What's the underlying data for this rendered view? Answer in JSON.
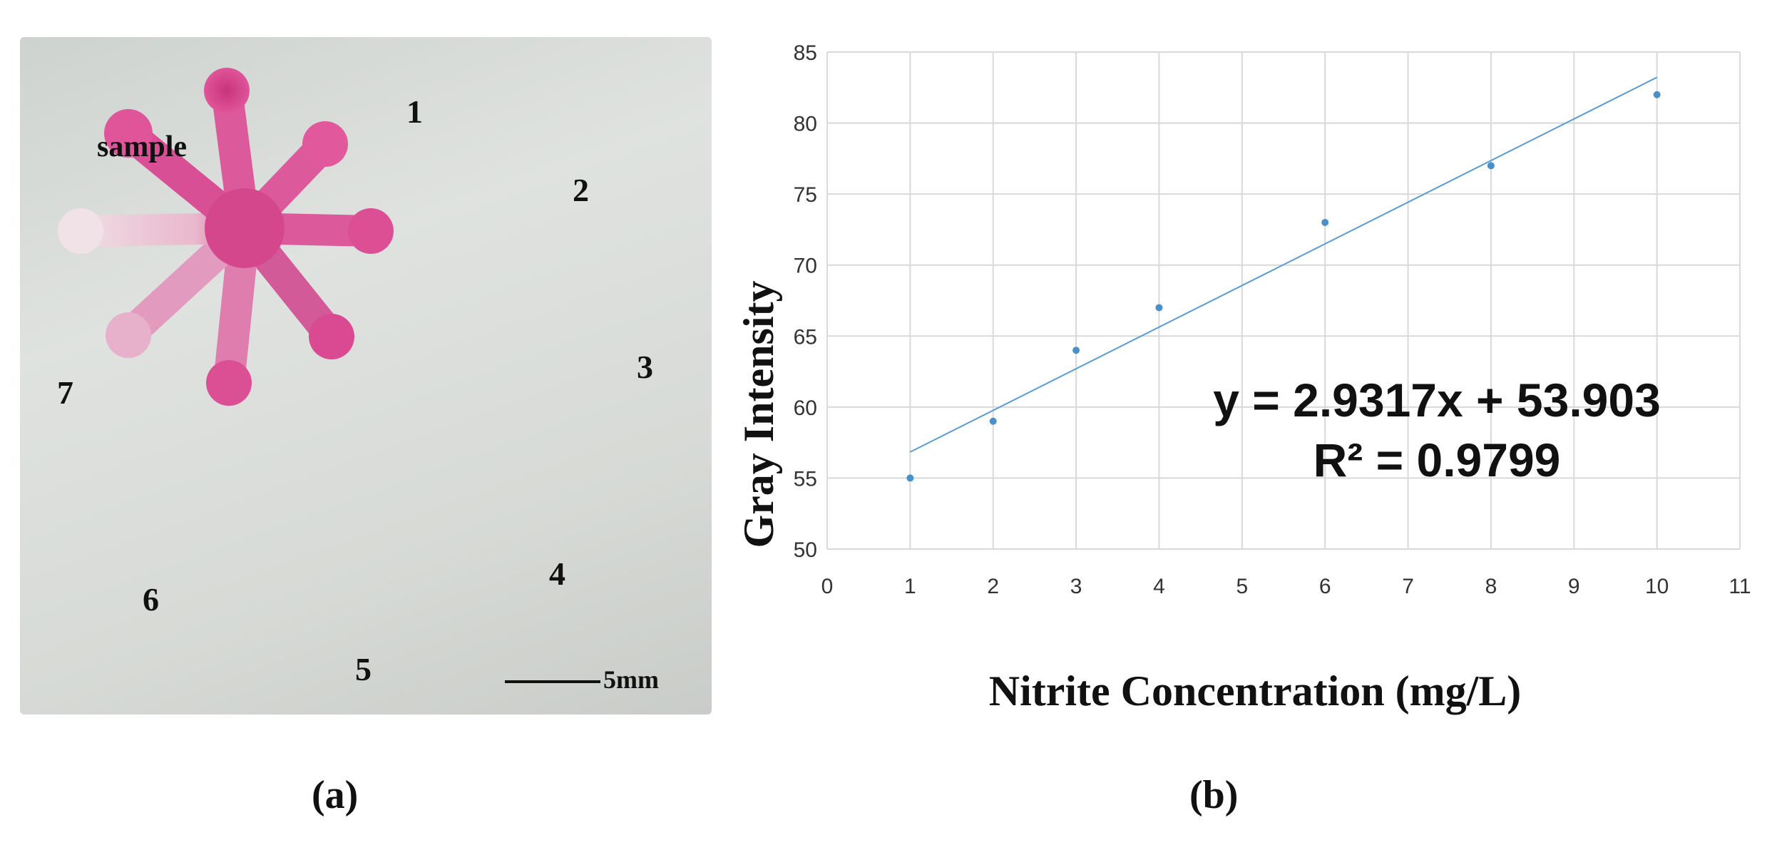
{
  "panel_a": {
    "sample_label": "sample",
    "channel_numbers": [
      "1",
      "2",
      "3",
      "4",
      "5",
      "6",
      "7"
    ],
    "scale_label": "5mm",
    "caption": "(a)"
  },
  "panel_b": {
    "caption": "(b)"
  },
  "colors": {
    "zone_pink": "#e0559a",
    "zone_pale": "#ecc6d6",
    "point": "#4a90c8",
    "trendline": "#5b9bd5",
    "grid": "#d9d9d9"
  },
  "chart_data": {
    "type": "scatter",
    "title": "",
    "xlabel": "Nitrite Concentration (mg/L)",
    "ylabel": "Gray Intensity",
    "x": [
      1,
      2,
      3,
      4,
      6,
      8,
      10
    ],
    "y": [
      55,
      59,
      64,
      67,
      73,
      77,
      82
    ],
    "xlim": [
      0,
      11
    ],
    "ylim": [
      50,
      85
    ],
    "xticks": [
      "0",
      "1",
      "2",
      "3",
      "4",
      "5",
      "6",
      "7",
      "8",
      "9",
      "10",
      "11"
    ],
    "yticks": [
      "50",
      "55",
      "60",
      "65",
      "70",
      "75",
      "80",
      "85"
    ],
    "grid": true,
    "trendline": {
      "type": "linear",
      "slope": 2.9317,
      "intercept": 53.903,
      "x_range": [
        1,
        10
      ],
      "equation_text": "y = 2.9317x + 53.903",
      "r2_text": "R² = 0.9799"
    }
  }
}
